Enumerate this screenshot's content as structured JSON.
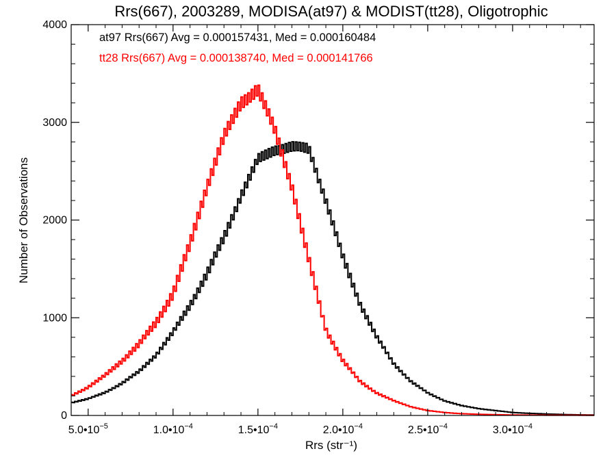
{
  "chart_data": {
    "type": "histogram",
    "title": "Rrs(667), 2003289, MODISA(at97) & MODIST(tt28), Oligotrophic",
    "xlabel": "Rrs (str⁻¹)",
    "ylabel": "Number of Observations",
    "xlim": [
      4e-05,
      0.000348
    ],
    "ylim": [
      0,
      4000
    ],
    "x_ticks": [
      {
        "value": 5e-05,
        "mant": "5.0•10",
        "exp": "−5"
      },
      {
        "value": 0.0001,
        "mant": "1.0•10",
        "exp": "−4"
      },
      {
        "value": 0.00015,
        "mant": "1.5•10",
        "exp": "−4"
      },
      {
        "value": 0.0002,
        "mant": "2.0•10",
        "exp": "−4"
      },
      {
        "value": 0.00025,
        "mant": "2.5•10",
        "exp": "−4"
      },
      {
        "value": 0.0003,
        "mant": "3.0•10",
        "exp": "−4"
      }
    ],
    "y_ticks": [
      {
        "value": 0,
        "label": "0"
      },
      {
        "value": 1000,
        "label": "1000"
      },
      {
        "value": 2000,
        "label": "2000"
      },
      {
        "value": 3000,
        "label": "3000"
      },
      {
        "value": 4000,
        "label": "4000"
      }
    ],
    "legend": [
      {
        "text": "at97 Rrs(667) Avg = 0.000157431, Med = 0.000160484",
        "color": "#000000"
      },
      {
        "text": "tt28 Rrs(667) Avg = 0.000138740, Med = 0.000141766",
        "color": "#ff0000"
      }
    ],
    "bin_width": 1e-06,
    "series": [
      {
        "color": "#000000",
        "peak_points": [
          [
            4e-05,
            130
          ],
          [
            5e-05,
            170
          ],
          [
            6e-05,
            235
          ],
          [
            7e-05,
            330
          ],
          [
            8e-05,
            450
          ],
          [
            9e-05,
            620
          ],
          [
            0.0001,
            850
          ],
          [
            0.00011,
            1130
          ],
          [
            0.00012,
            1450
          ],
          [
            0.00013,
            1820
          ],
          [
            0.00014,
            2250
          ],
          [
            0.00015,
            2620
          ],
          [
            0.00016,
            2720
          ],
          [
            0.00017,
            2750
          ],
          [
            0.00018,
            2730
          ],
          [
            0.00019,
            2200
          ],
          [
            0.0002,
            1620
          ],
          [
            0.00021,
            1150
          ],
          [
            0.00022,
            800
          ],
          [
            0.00023,
            530
          ],
          [
            0.00024,
            350
          ],
          [
            0.00025,
            230
          ],
          [
            0.00026,
            150
          ],
          [
            0.00027,
            100
          ],
          [
            0.00028,
            70
          ],
          [
            0.00029,
            50
          ],
          [
            0.0003,
            30
          ],
          [
            0.00031,
            22
          ],
          [
            0.00032,
            15
          ],
          [
            0.00033,
            10
          ],
          [
            0.00034,
            6
          ],
          [
            0.000348,
            5
          ]
        ],
        "noise": 55
      },
      {
        "color": "#ff0000",
        "peak_points": [
          [
            4e-05,
            200
          ],
          [
            5e-05,
            290
          ],
          [
            6e-05,
            410
          ],
          [
            7e-05,
            560
          ],
          [
            8e-05,
            730
          ],
          [
            9e-05,
            950
          ],
          [
            0.0001,
            1250
          ],
          [
            0.00011,
            1750
          ],
          [
            0.00012,
            2350
          ],
          [
            0.00013,
            2850
          ],
          [
            0.00014,
            3200
          ],
          [
            0.00015,
            3340
          ],
          [
            0.00016,
            2920
          ],
          [
            0.00017,
            2350
          ],
          [
            0.00018,
            1580
          ],
          [
            0.00019,
            880
          ],
          [
            0.0002,
            560
          ],
          [
            0.00021,
            350
          ],
          [
            0.00022,
            230
          ],
          [
            0.00023,
            150
          ],
          [
            0.00024,
            90
          ],
          [
            0.00025,
            50
          ],
          [
            0.00026,
            30
          ],
          [
            0.00027,
            18
          ],
          [
            0.00028,
            12
          ],
          [
            0.00029,
            8
          ],
          [
            0.0003,
            5
          ],
          [
            0.00032,
            3
          ],
          [
            0.000348,
            2
          ]
        ],
        "noise": 70
      }
    ]
  }
}
